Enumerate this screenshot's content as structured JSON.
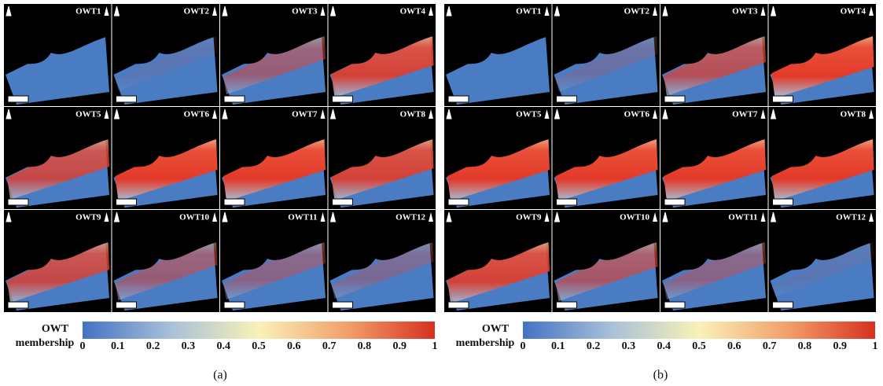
{
  "panels": [
    {
      "label": "(a)",
      "tiles": [
        "OWT1",
        "OWT2",
        "OWT3",
        "OWT4",
        "OWT5",
        "OWT6",
        "OWT7",
        "OWT8",
        "OWT9",
        "OWT10",
        "OWT11",
        "OWT12"
      ],
      "colorbar": {
        "title": [
          "OWT",
          "membership"
        ],
        "ticks": [
          0,
          0.1,
          0.2,
          0.3,
          0.4,
          0.5,
          0.6,
          0.7,
          0.8,
          0.9,
          1
        ]
      }
    },
    {
      "label": "(b)",
      "tiles": [
        "OWT1",
        "OWT2",
        "OWT3",
        "OWT4",
        "OWT5",
        "OWT6",
        "OWT7",
        "OWT8",
        "OWT9",
        "OWT10",
        "OWT11",
        "OWT12"
      ],
      "colorbar": {
        "title": [
          "OWT",
          "membership"
        ],
        "ticks": [
          0,
          0.1,
          0.2,
          0.3,
          0.4,
          0.5,
          0.6,
          0.7,
          0.8,
          0.9,
          1
        ]
      }
    }
  ]
}
